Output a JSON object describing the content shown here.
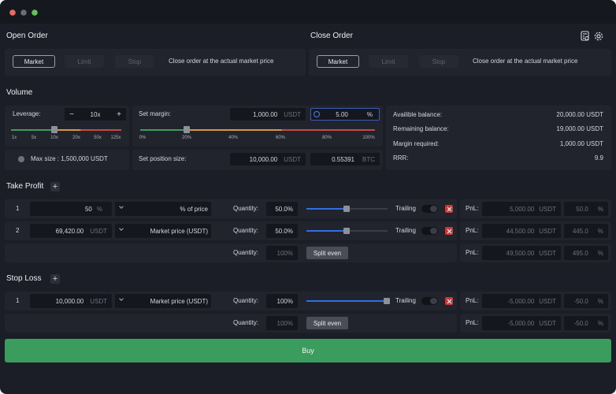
{
  "open_order": {
    "title": "Open Order",
    "tabs": [
      "Market",
      "Limit",
      "Stop"
    ],
    "description": "Close order at the  actual market price"
  },
  "close_order": {
    "title": "Close Order",
    "tabs": [
      "Market",
      "Limit",
      "Stop"
    ],
    "description": "Close order at the  actual market price"
  },
  "volume": {
    "title": "Volume",
    "leverage": {
      "label": "Leverage:",
      "minus": "−",
      "value": "10x",
      "plus": "+",
      "ticks": [
        "1x",
        "5x",
        "10x",
        "20x",
        "50x",
        "125x"
      ]
    },
    "max_size": "Max size : 1,500,000 USDT",
    "margin": {
      "label": "Set margin:",
      "amount": "1,000.00",
      "unit": "USDT",
      "percent": "5.00",
      "percent_unit": "%",
      "ticks": [
        "0%",
        "20%",
        "40%",
        "60%",
        "80%",
        "100%"
      ]
    },
    "position": {
      "label": "Set position size:",
      "amount": "10,000.00",
      "unit": "USDT",
      "btc": "0.55391",
      "btc_unit": "BTC"
    },
    "balances": [
      {
        "label": "Availible balance:",
        "value": "20,000.00 USDT"
      },
      {
        "label": "Remaining balance:",
        "value": "19,000.00 USDT"
      },
      {
        "label": "Margin required:",
        "value": "1,000.00 USDT"
      },
      {
        "label": "RRR:",
        "value": "9.9"
      }
    ]
  },
  "take_profit": {
    "title": "Take Profit",
    "add": "+",
    "rows": [
      {
        "index": "1",
        "price": "50",
        "price_unit": "%",
        "price_type": "% of price",
        "quantity_label": "Quantity:",
        "quantity": "50.0%",
        "trailing": "Trailing",
        "pnl_label": "PnL:",
        "pnl": "5,000.00",
        "pnl_unit": "USDT",
        "pnl_percent": "50.0",
        "pnl_percent_unit": "%"
      },
      {
        "index": "2",
        "price": "69,420.00",
        "price_unit": "USDT",
        "price_type": "Market price (USDT)",
        "quantity_label": "Quantity:",
        "quantity": "50.0%",
        "trailing": "Trailing",
        "pnl_label": "PnL:",
        "pnl": "44,500.00",
        "pnl_unit": "USDT",
        "pnl_percent": "445.0",
        "pnl_percent_unit": "%"
      }
    ],
    "summary": {
      "quantity_label": "Quantity:",
      "quantity": "100%",
      "button": "Split even",
      "pnl_label": "PnL:",
      "pnl": "49,500.00",
      "pnl_unit": "USDT",
      "pnl_percent": "495.0",
      "pnl_percent_unit": "%"
    }
  },
  "stop_loss": {
    "title": "Stop Loss",
    "add": "+",
    "rows": [
      {
        "index": "1",
        "price": "10,000.00",
        "price_unit": "USDT",
        "price_type": "Market price (USDT)",
        "quantity_label": "Quantity:",
        "quantity": "100%",
        "trailing": "Trailing",
        "pnl_label": "PnL:",
        "pnl": "-5,000.00",
        "pnl_unit": "USDT",
        "pnl_percent": "-50.0",
        "pnl_percent_unit": "%"
      }
    ],
    "summary": {
      "quantity_label": "Quantity:",
      "quantity": "100%",
      "button": "Split even",
      "pnl_label": "PnL:",
      "pnl": "-5,000.00",
      "pnl_unit": "USDT",
      "pnl_percent": "-50.0",
      "pnl_percent_unit": "%"
    }
  },
  "buy_button": "Buy"
}
